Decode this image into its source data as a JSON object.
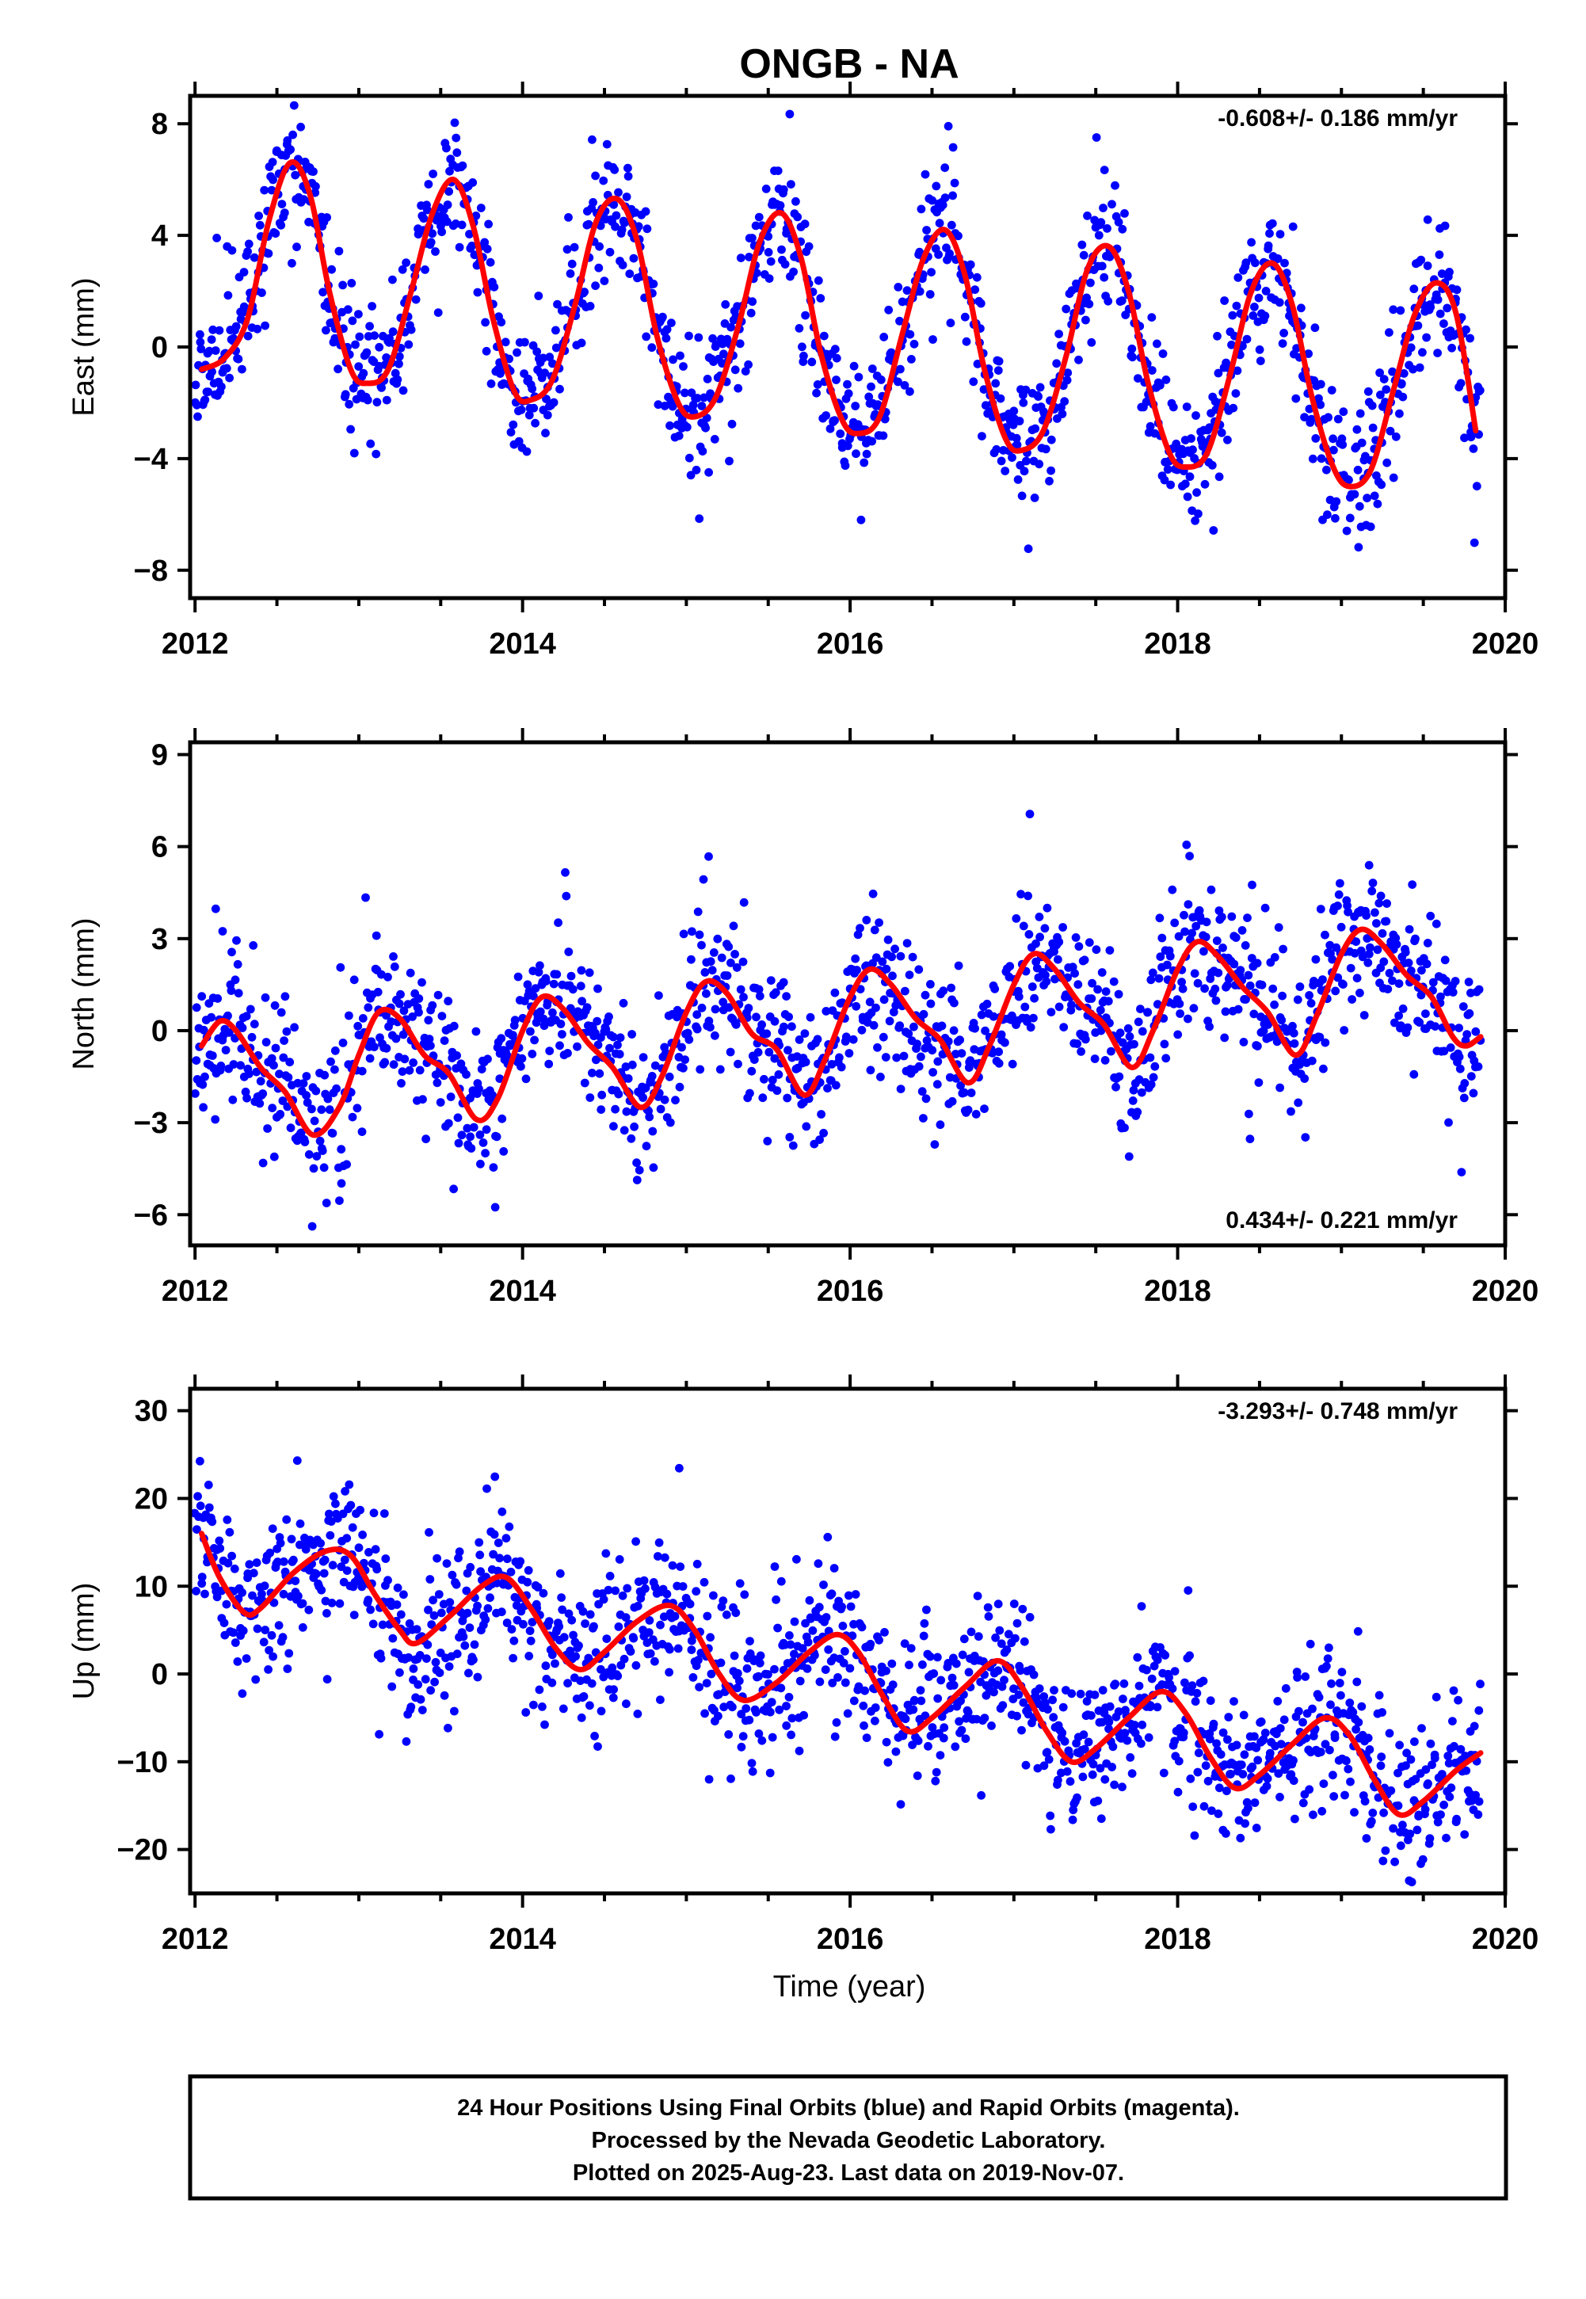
{
  "colors": {
    "points": "#0000ff",
    "fit": "#ff0000",
    "frame": "#000000",
    "background": "#ffffff"
  },
  "figure_title": "ONGB - NA",
  "x_axis": {
    "tick_labels": [
      "2012",
      "2014",
      "2016",
      "2018",
      "2020"
    ],
    "label": "Time (year)"
  },
  "footer": {
    "line1": "24 Hour Positions Using Final Orbits (blue) and Rapid Orbits (magenta).",
    "line2": "Processed by the Nevada Geodetic Laboratory.",
    "line3": "Plotted on 2025-Aug-23. Last data on 2019-Nov-07."
  },
  "chart_data": [
    {
      "type": "scatter",
      "title": "ONGB - NA",
      "ylabel": "East (mm)",
      "xlabel": "",
      "rate": "-0.608+/- 0.186 mm/yr",
      "rate_position": "top-right",
      "xlim": [
        2011.97,
        2020.0
      ],
      "ylim": [
        -9.0,
        9.0
      ],
      "x_ticks": [
        2012,
        2014,
        2016,
        2018,
        2020
      ],
      "y_ticks": [
        -8,
        -4,
        0,
        4,
        8
      ],
      "y_tick_labels": [
        "−8",
        "−4",
        "0",
        "4",
        "8"
      ],
      "grid": false,
      "data_start": 2012.0,
      "data_end": 2019.85,
      "fit_curve": {
        "name": "model fit",
        "points": [
          [
            2012.04,
            -0.8
          ],
          [
            2012.18,
            -0.4
          ],
          [
            2012.32,
            1.0
          ],
          [
            2012.45,
            4.5
          ],
          [
            2012.58,
            6.6
          ],
          [
            2012.7,
            5.5
          ],
          [
            2012.82,
            2.0
          ],
          [
            2012.95,
            -0.8
          ],
          [
            2013.05,
            -1.3
          ],
          [
            2013.18,
            -0.8
          ],
          [
            2013.32,
            2.0
          ],
          [
            2013.45,
            4.8
          ],
          [
            2013.58,
            6.0
          ],
          [
            2013.7,
            4.3
          ],
          [
            2013.82,
            1.0
          ],
          [
            2013.95,
            -1.6
          ],
          [
            2014.05,
            -1.9
          ],
          [
            2014.18,
            -1.2
          ],
          [
            2014.32,
            1.5
          ],
          [
            2014.45,
            4.5
          ],
          [
            2014.58,
            5.3
          ],
          [
            2014.7,
            3.8
          ],
          [
            2014.82,
            0.4
          ],
          [
            2014.95,
            -2.0
          ],
          [
            2015.05,
            -2.5
          ],
          [
            2015.18,
            -1.8
          ],
          [
            2015.32,
            0.8
          ],
          [
            2015.45,
            3.8
          ],
          [
            2015.58,
            4.8
          ],
          [
            2015.7,
            3.2
          ],
          [
            2015.82,
            -0.2
          ],
          [
            2015.95,
            -2.6
          ],
          [
            2016.05,
            -3.1
          ],
          [
            2016.18,
            -2.5
          ],
          [
            2016.32,
            0.5
          ],
          [
            2016.45,
            3.2
          ],
          [
            2016.58,
            4.2
          ],
          [
            2016.7,
            2.6
          ],
          [
            2016.82,
            -0.8
          ],
          [
            2016.95,
            -3.3
          ],
          [
            2017.05,
            -3.7
          ],
          [
            2017.18,
            -3.0
          ],
          [
            2017.32,
            -0.3
          ],
          [
            2017.45,
            2.8
          ],
          [
            2017.58,
            3.6
          ],
          [
            2017.7,
            2.0
          ],
          [
            2017.82,
            -1.3
          ],
          [
            2017.95,
            -3.8
          ],
          [
            2018.05,
            -4.3
          ],
          [
            2018.18,
            -3.8
          ],
          [
            2018.32,
            -1.0
          ],
          [
            2018.45,
            2.0
          ],
          [
            2018.58,
            3.0
          ],
          [
            2018.7,
            1.5
          ],
          [
            2018.82,
            -1.8
          ],
          [
            2018.95,
            -4.3
          ],
          [
            2019.05,
            -5.0
          ],
          [
            2019.18,
            -4.4
          ],
          [
            2019.32,
            -1.5
          ],
          [
            2019.45,
            1.2
          ],
          [
            2019.58,
            2.3
          ],
          [
            2019.7,
            1.2
          ],
          [
            2019.82,
            -3.0
          ]
        ]
      },
      "scatter_model": {
        "amplitude": 4.8,
        "phase": 1.05,
        "offset": 0.45,
        "trend": -0.55,
        "noise": 1.25,
        "outlier_rate": 0.01,
        "seed": 11
      }
    },
    {
      "type": "scatter",
      "ylabel": "North (mm)",
      "xlabel": "",
      "rate": "0.434+/- 0.221 mm/yr",
      "rate_position": "bottom-right",
      "xlim": [
        2011.97,
        2020.0
      ],
      "ylim": [
        -7.0,
        9.4
      ],
      "x_ticks": [
        2012,
        2014,
        2016,
        2018,
        2020
      ],
      "y_ticks": [
        -6,
        -3,
        0,
        3,
        6,
        9
      ],
      "y_tick_labels": [
        "−6",
        "−3",
        "0",
        "3",
        "6",
        "9"
      ],
      "grid": false,
      "data_start": 2012.0,
      "data_end": 2019.85,
      "fit_curve": {
        "name": "model fit",
        "points": [
          [
            2012.04,
            -0.5
          ],
          [
            2012.15,
            0.3
          ],
          [
            2012.25,
            0.0
          ],
          [
            2012.4,
            -1.2
          ],
          [
            2012.55,
            -2.0
          ],
          [
            2012.72,
            -3.4
          ],
          [
            2012.88,
            -2.5
          ],
          [
            2013.0,
            -0.8
          ],
          [
            2013.12,
            0.6
          ],
          [
            2013.25,
            0.4
          ],
          [
            2013.4,
            -0.8
          ],
          [
            2013.55,
            -1.4
          ],
          [
            2013.72,
            -2.9
          ],
          [
            2013.85,
            -2.2
          ],
          [
            2014.0,
            0.0
          ],
          [
            2014.12,
            1.1
          ],
          [
            2014.25,
            0.7
          ],
          [
            2014.4,
            -0.4
          ],
          [
            2014.55,
            -1.2
          ],
          [
            2014.72,
            -2.5
          ],
          [
            2014.85,
            -1.5
          ],
          [
            2015.0,
            0.6
          ],
          [
            2015.12,
            1.6
          ],
          [
            2015.25,
            1.2
          ],
          [
            2015.4,
            -0.1
          ],
          [
            2015.55,
            -0.6
          ],
          [
            2015.72,
            -2.1
          ],
          [
            2015.85,
            -0.9
          ],
          [
            2016.0,
            1.1
          ],
          [
            2016.12,
            2.0
          ],
          [
            2016.25,
            1.5
          ],
          [
            2016.4,
            0.4
          ],
          [
            2016.55,
            -0.3
          ],
          [
            2016.72,
            -1.7
          ],
          [
            2016.85,
            -0.5
          ],
          [
            2017.0,
            1.5
          ],
          [
            2017.12,
            2.5
          ],
          [
            2017.25,
            2.0
          ],
          [
            2017.4,
            0.9
          ],
          [
            2017.55,
            0.2
          ],
          [
            2017.72,
            -1.2
          ],
          [
            2017.85,
            0.0
          ],
          [
            2018.0,
            2.0
          ],
          [
            2018.12,
            2.9
          ],
          [
            2018.25,
            2.4
          ],
          [
            2018.4,
            1.4
          ],
          [
            2018.55,
            0.6
          ],
          [
            2018.72,
            -0.8
          ],
          [
            2018.85,
            0.5
          ],
          [
            2019.0,
            2.5
          ],
          [
            2019.12,
            3.3
          ],
          [
            2019.25,
            2.8
          ],
          [
            2019.4,
            1.8
          ],
          [
            2019.55,
            1.1
          ],
          [
            2019.68,
            -0.2
          ],
          [
            2019.76,
            -0.5
          ],
          [
            2019.85,
            -0.2
          ]
        ]
      },
      "scatter_model": {
        "amplitude": 0,
        "phase": 0,
        "offset": 0,
        "trend": 0,
        "noise": 1.2,
        "outlier_rate": 0.012,
        "seed": 23
      }
    },
    {
      "type": "scatter",
      "ylabel": "Up (mm)",
      "xlabel": "Time (year)",
      "rate": "-3.293+/- 0.748 mm/yr",
      "rate_position": "top-right",
      "xlim": [
        2011.97,
        2020.0
      ],
      "ylim": [
        -25.0,
        32.5
      ],
      "x_ticks": [
        2012,
        2014,
        2016,
        2018,
        2020
      ],
      "y_ticks": [
        -20,
        -10,
        0,
        10,
        20,
        30
      ],
      "y_tick_labels": [
        "−20",
        "−10",
        "0",
        "10",
        "20",
        "30"
      ],
      "grid": false,
      "data_start": 2012.0,
      "data_end": 2019.85,
      "fit_curve": {
        "name": "model fit",
        "points": [
          [
            2012.04,
            16.0
          ],
          [
            2012.15,
            11.0
          ],
          [
            2012.3,
            7.0
          ],
          [
            2012.4,
            7.5
          ],
          [
            2012.6,
            11.5
          ],
          [
            2012.8,
            14.0
          ],
          [
            2012.95,
            13.5
          ],
          [
            2013.1,
            9.0
          ],
          [
            2013.25,
            5.0
          ],
          [
            2013.35,
            3.5
          ],
          [
            2013.55,
            6.5
          ],
          [
            2013.75,
            10.0
          ],
          [
            2013.9,
            11.0
          ],
          [
            2014.05,
            7.5
          ],
          [
            2014.2,
            3.0
          ],
          [
            2014.35,
            0.5
          ],
          [
            2014.5,
            2.5
          ],
          [
            2014.7,
            6.0
          ],
          [
            2014.9,
            7.8
          ],
          [
            2015.05,
            5.0
          ],
          [
            2015.2,
            0.0
          ],
          [
            2015.35,
            -3.0
          ],
          [
            2015.55,
            -1.0
          ],
          [
            2015.75,
            2.5
          ],
          [
            2015.92,
            4.5
          ],
          [
            2016.05,
            2.5
          ],
          [
            2016.2,
            -2.5
          ],
          [
            2016.35,
            -6.5
          ],
          [
            2016.5,
            -5.0
          ],
          [
            2016.7,
            -1.5
          ],
          [
            2016.9,
            1.5
          ],
          [
            2017.05,
            -1.5
          ],
          [
            2017.2,
            -6.5
          ],
          [
            2017.35,
            -10.0
          ],
          [
            2017.5,
            -8.5
          ],
          [
            2017.7,
            -5.0
          ],
          [
            2017.9,
            -2.0
          ],
          [
            2018.05,
            -4.5
          ],
          [
            2018.2,
            -9.5
          ],
          [
            2018.35,
            -13.0
          ],
          [
            2018.5,
            -11.5
          ],
          [
            2018.7,
            -8.0
          ],
          [
            2018.9,
            -5.0
          ],
          [
            2019.05,
            -7.0
          ],
          [
            2019.2,
            -12.0
          ],
          [
            2019.35,
            -16.0
          ],
          [
            2019.5,
            -14.5
          ],
          [
            2019.7,
            -11.0
          ],
          [
            2019.85,
            -9.0
          ]
        ]
      },
      "scatter_model": {
        "amplitude": 0,
        "phase": 0,
        "offset": 0,
        "trend": 0,
        "noise": 4.3,
        "outlier_rate": 0.015,
        "seed": 37
      }
    }
  ]
}
